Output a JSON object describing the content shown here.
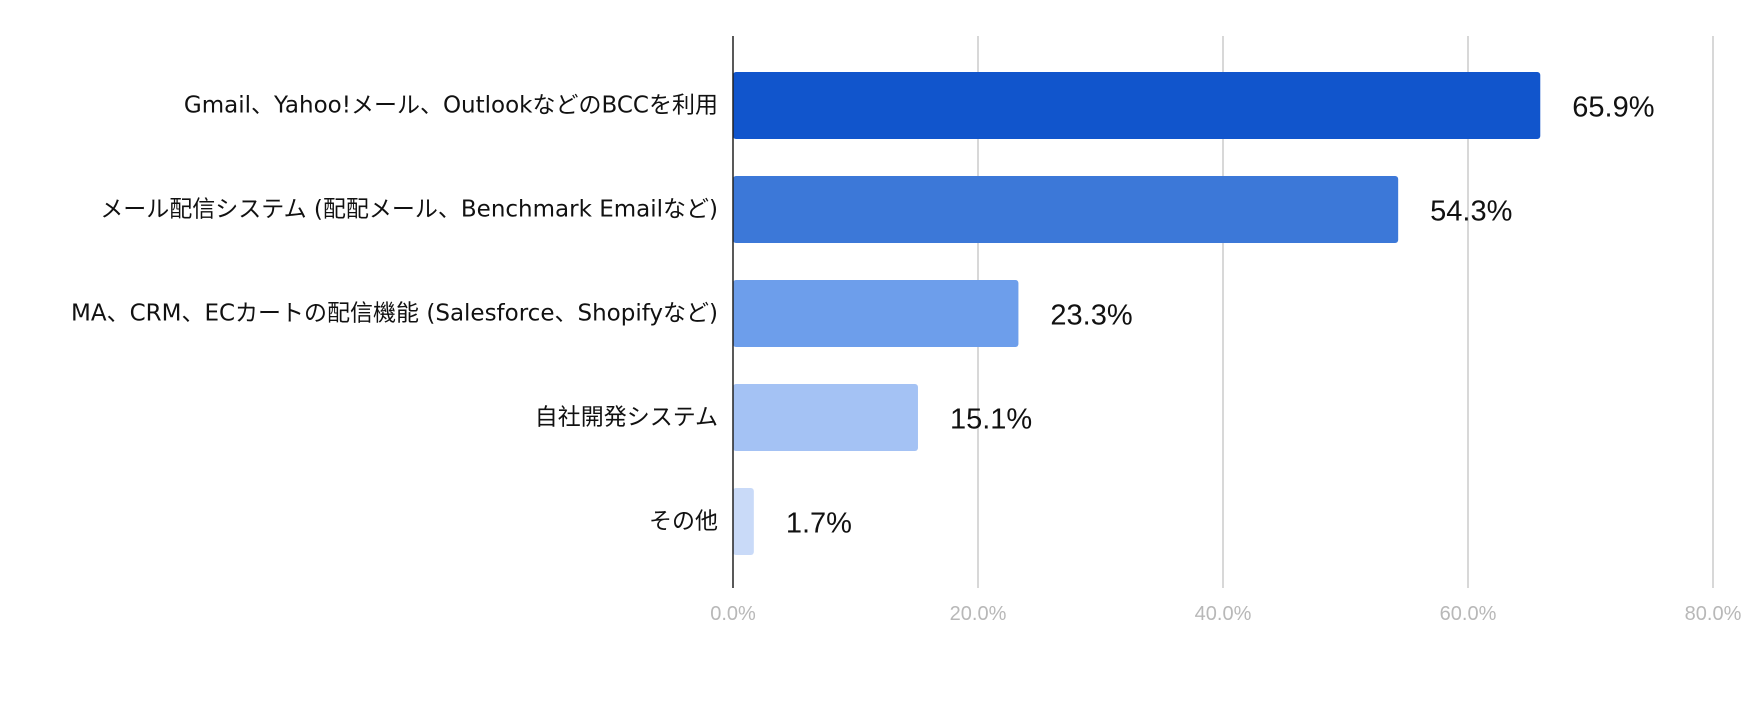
{
  "chart_data": {
    "type": "bar",
    "orientation": "horizontal",
    "categories": [
      "Gmail、Yahoo!メール、OutlookなどのBCCを利用",
      "メール配信システム (配配メール、Benchmark Emailなど)",
      "MA、CRM、ECカートの配信機能 (Salesforce、Shopifyなど)",
      "自社開発システム",
      "その他"
    ],
    "values": [
      65.9,
      54.3,
      23.3,
      15.1,
      1.7
    ],
    "value_labels": [
      "65.9%",
      "54.3%",
      "23.3%",
      "15.1%",
      "1.7%"
    ],
    "colors": [
      "#1155cc",
      "#3c78d8",
      "#6d9eeb",
      "#a4c2f4",
      "#c9daf8"
    ],
    "xlim": [
      0,
      80
    ],
    "ticks": [
      0,
      20,
      40,
      60,
      80
    ],
    "tick_labels": [
      "0.0%",
      "20.0%",
      "40.0%",
      "60.0%",
      "80.0%"
    ],
    "grid": true,
    "title": "",
    "xlabel": "",
    "ylabel": ""
  }
}
